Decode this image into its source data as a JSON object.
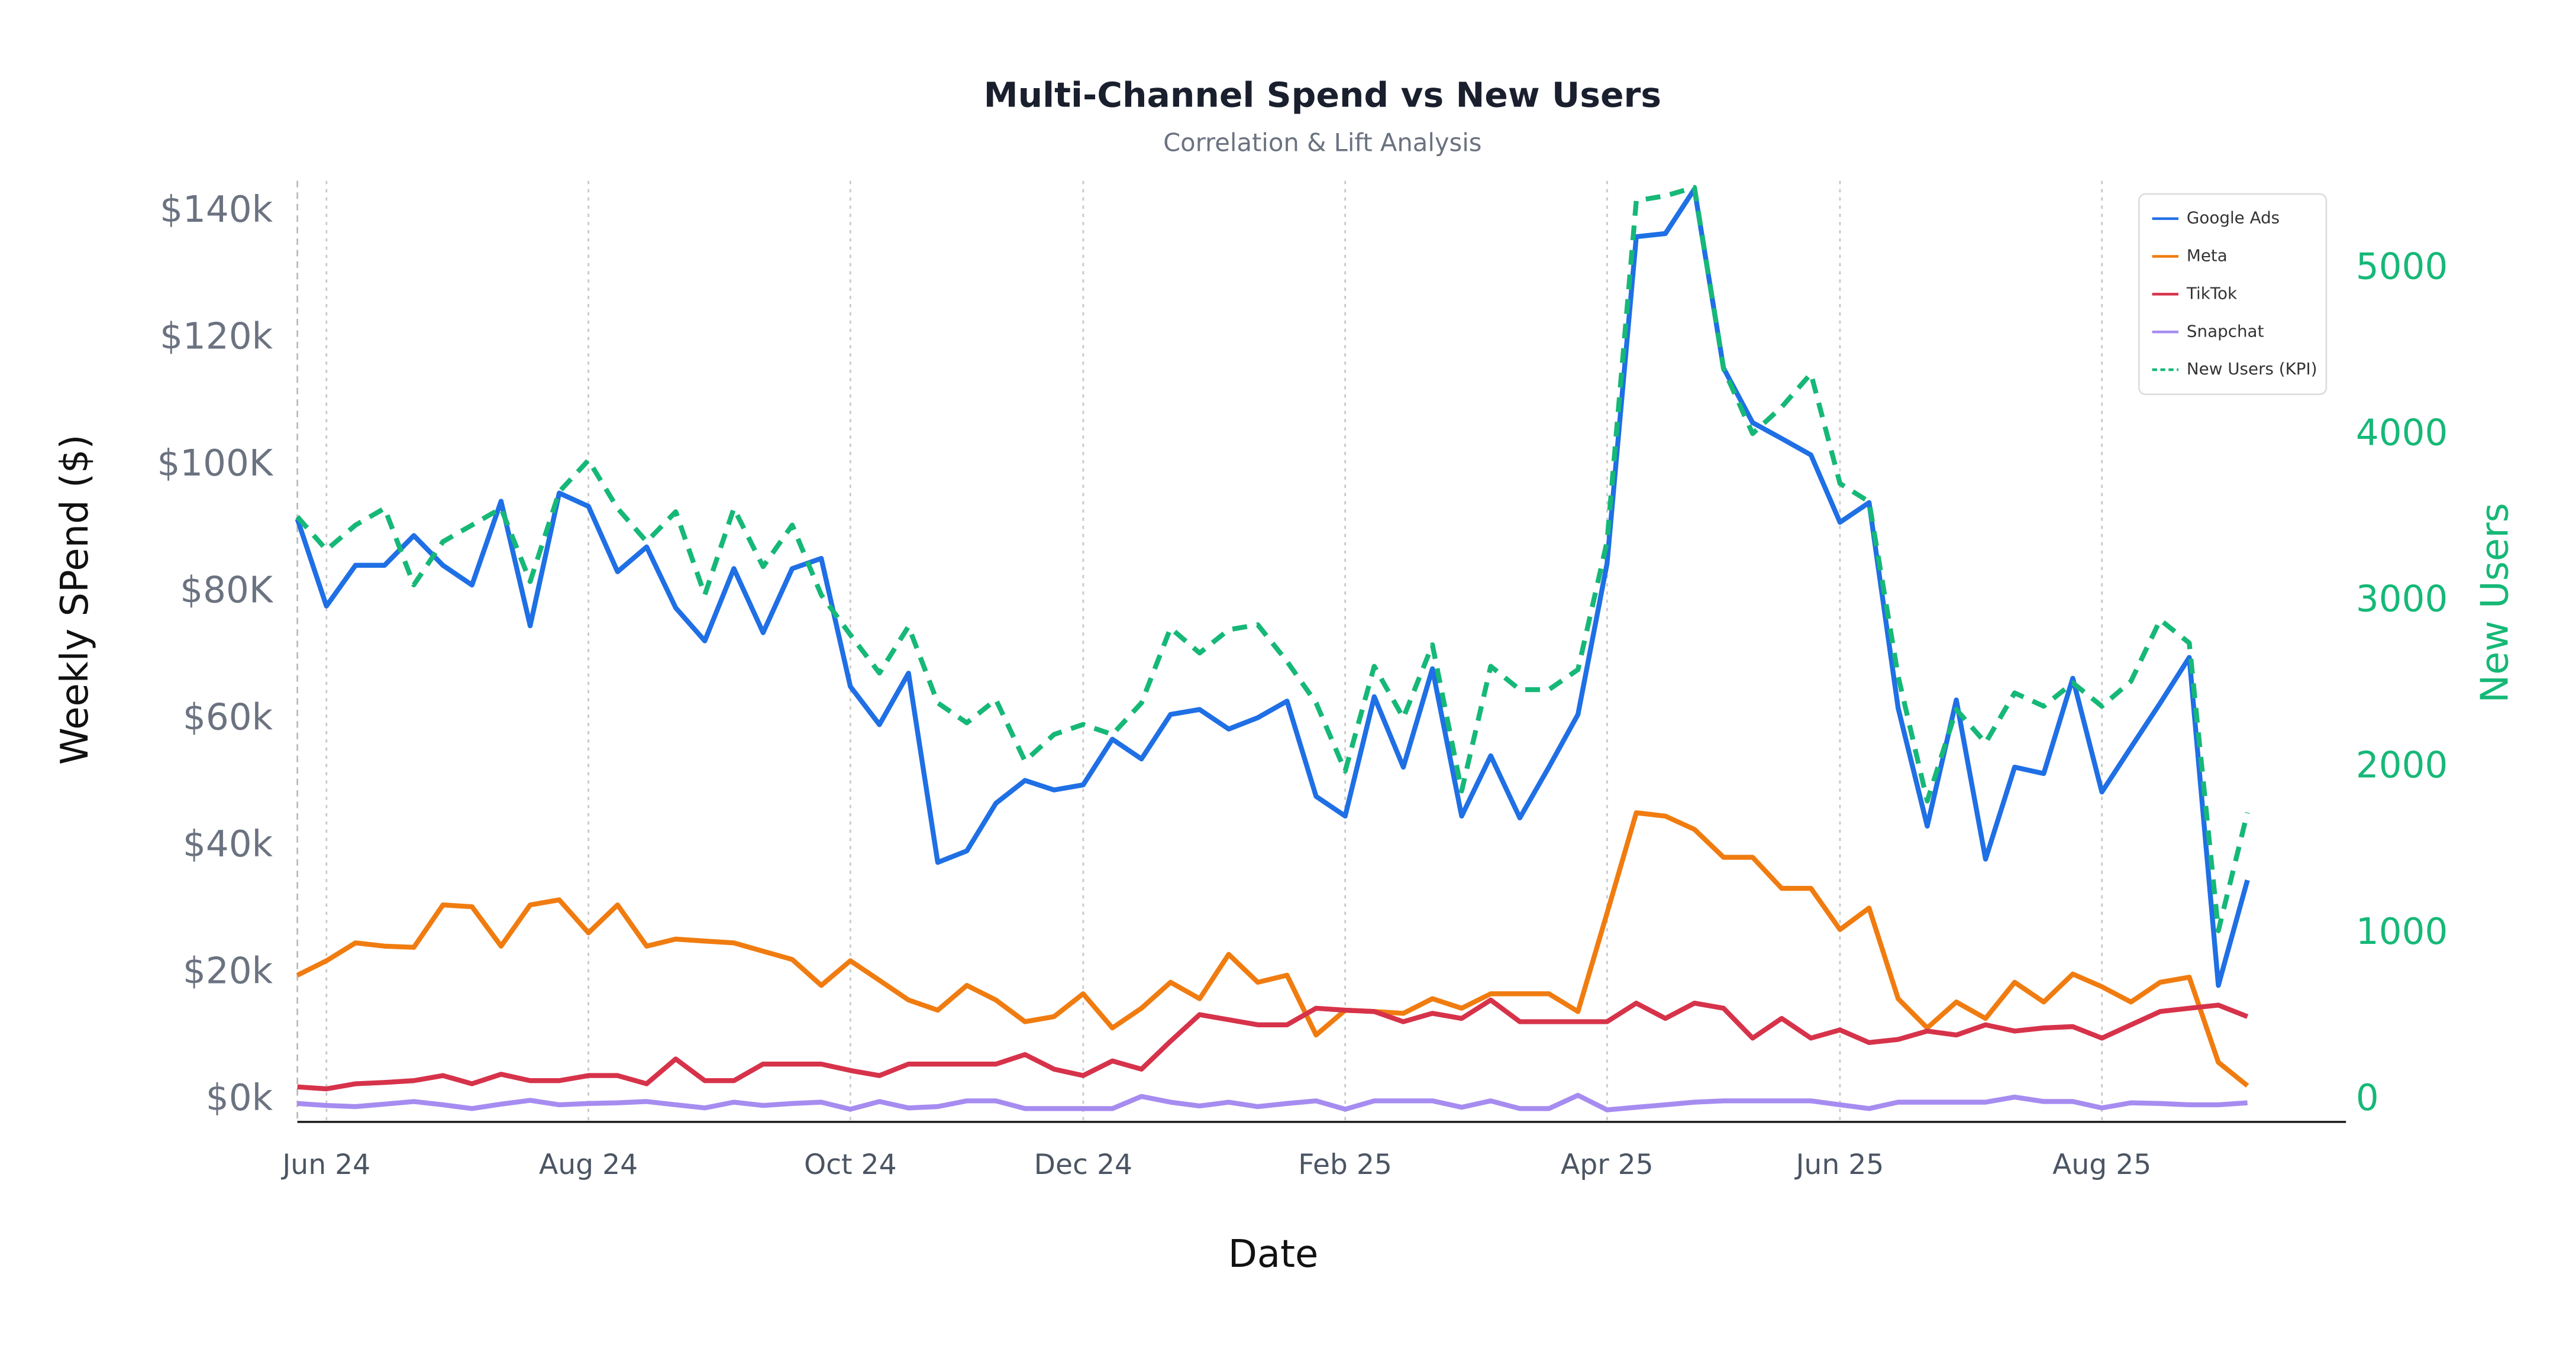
{
  "chart_data": {
    "type": "line",
    "title": "Multi-Channel Spend vs New Users",
    "subtitle": "Correlation & Lift Analysis",
    "x_label": "Date",
    "y_label": "Weekly SPend ($)",
    "y2_label": "New Users",
    "categories": [
      null,
      "Jun 24",
      null,
      null,
      null,
      null,
      null,
      null,
      null,
      null,
      "Aug 24",
      null,
      null,
      null,
      null,
      null,
      null,
      null,
      null,
      "Oct 24",
      null,
      null,
      null,
      null,
      null,
      null,
      null,
      "Dec 24",
      null,
      null,
      null,
      null,
      null,
      null,
      null,
      null,
      "Feb 25",
      null,
      null,
      null,
      null,
      null,
      null,
      null,
      null,
      "Apr 25",
      null,
      null,
      null,
      null,
      null,
      null,
      null,
      "Jun 25",
      null,
      null,
      null,
      null,
      null,
      null,
      null,
      null,
      "Aug 25",
      null,
      null,
      null,
      null,
      null
    ],
    "series": [
      {
        "name": "Google Ads",
        "color": "#1f6fe5",
        "values": [
          91600,
          77900,
          84300,
          84300,
          89000,
          84300,
          81200,
          94400,
          74800,
          95700,
          93600,
          83300,
          87200,
          77600,
          72400,
          83800,
          73700,
          83800,
          85400,
          65200,
          59200,
          67300,
          37500,
          39300,
          46800,
          50400,
          48900,
          49700,
          56900,
          53800,
          60800,
          61600,
          58500,
          60300,
          62900,
          47900,
          44800,
          63600,
          52500,
          68000,
          44800,
          54300,
          44500,
          52500,
          60800,
          84600,
          136100,
          136600,
          143600,
          115400,
          106800,
          104300,
          101700,
          91100,
          94200,
          61800,
          43200,
          63100,
          38000,
          52500,
          51500,
          66500,
          48600,
          55600,
          62600,
          69800,
          18100,
          34700
        ]
      },
      {
        "name": "Meta",
        "color": "#f07c10",
        "values": [
          19700,
          22000,
          24800,
          24300,
          24100,
          30800,
          30500,
          24300,
          30800,
          31600,
          26400,
          30800,
          24300,
          25400,
          25100,
          24800,
          23500,
          22200,
          18100,
          22000,
          18900,
          15800,
          14200,
          18100,
          15800,
          12400,
          13200,
          16800,
          11400,
          14500,
          18600,
          16000,
          23000,
          18600,
          19700,
          10300,
          14200,
          14000,
          13700,
          16000,
          14500,
          16800,
          16800,
          16800,
          14000,
          29500,
          45300,
          44800,
          42700,
          38300,
          38300,
          33400,
          33400,
          26900,
          30300,
          16000,
          11400,
          15500,
          12900,
          18600,
          15500,
          19900,
          17900,
          15500,
          18600,
          19400,
          6000,
          2300
        ]
      },
      {
        "name": "TikTok",
        "color": "#d6334a",
        "values": [
          2100,
          1800,
          2600,
          2800,
          3100,
          3900,
          2600,
          4100,
          3100,
          3100,
          3900,
          3900,
          2600,
          6500,
          3100,
          3100,
          5700,
          5700,
          5700,
          4700,
          3900,
          5700,
          5700,
          5700,
          5700,
          7200,
          4900,
          3900,
          6200,
          4900,
          9300,
          13500,
          12700,
          11900,
          11900,
          14500,
          14200,
          14000,
          12400,
          13700,
          12900,
          15800,
          12400,
          12400,
          12400,
          12400,
          15300,
          12900,
          15300,
          14500,
          9800,
          12900,
          9800,
          11100,
          9100,
          9600,
          10900,
          10300,
          11900,
          10900,
          11400,
          11600,
          9800,
          11900,
          14000,
          14500,
          15000,
          13200
        ]
      },
      {
        "name": "Snapchat",
        "color": "#a68cf0",
        "values": [
          -500,
          -800,
          -1000,
          -600,
          -200,
          -700,
          -1300,
          -600,
          0,
          -700,
          -500,
          -400,
          -200,
          -700,
          -1200,
          -300,
          -800,
          -500,
          -300,
          -1400,
          -200,
          -1200,
          -1000,
          -100,
          -100,
          -1300,
          -1300,
          -1300,
          -1300,
          600,
          -300,
          -900,
          -300,
          -1000,
          -500,
          -100,
          -1400,
          -100,
          -100,
          -100,
          -1100,
          -100,
          -1300,
          -1300,
          800,
          -1500,
          -1100,
          -700,
          -300,
          -100,
          -100,
          -100,
          -100,
          -700,
          -1300,
          -300,
          -300,
          -300,
          -300,
          500,
          -200,
          -200,
          -1200,
          -400,
          -500,
          -700,
          -700,
          -400
        ]
      },
      {
        "name": "New Users (KPI)",
        "color": "#16b877",
        "axis": "y2",
        "linestyle": "dashed",
        "values": [
          3510,
          3310,
          3460,
          3560,
          3100,
          3360,
          3460,
          3560,
          3120,
          3660,
          3850,
          3560,
          3360,
          3540,
          3040,
          3560,
          3210,
          3460,
          3040,
          2800,
          2570,
          2850,
          2390,
          2270,
          2410,
          2040,
          2200,
          2260,
          2200,
          2390,
          2840,
          2690,
          2830,
          2860,
          2640,
          2390,
          1980,
          2610,
          2300,
          2740,
          1860,
          2610,
          2470,
          2470,
          2590,
          3360,
          5410,
          5440,
          5490,
          4400,
          4010,
          4170,
          4370,
          3710,
          3600,
          2550,
          1800,
          2350,
          2150,
          2450,
          2370,
          2510,
          2370,
          2520,
          2890,
          2750,
          1020,
          1730
        ]
      }
    ],
    "ylim": [
      -3400,
      144900
    ],
    "yticks": [
      {
        "value": 0,
        "label": "$0k"
      },
      {
        "value": 20000,
        "label": "$20k"
      },
      {
        "value": 40000,
        "label": "$40k"
      },
      {
        "value": 60000,
        "label": "$60k"
      },
      {
        "value": 80000,
        "label": "$80K"
      },
      {
        "value": 100000,
        "label": "$100K"
      },
      {
        "value": 120000,
        "label": "$120k"
      },
      {
        "value": 140000,
        "label": "$140k"
      }
    ],
    "y2lim": [
      -130,
      5530
    ],
    "y2ticks": [
      0,
      1000,
      2000,
      3000,
      4000,
      5000
    ],
    "y2_color": "#16b877",
    "grid": true,
    "legend": "upper right"
  }
}
